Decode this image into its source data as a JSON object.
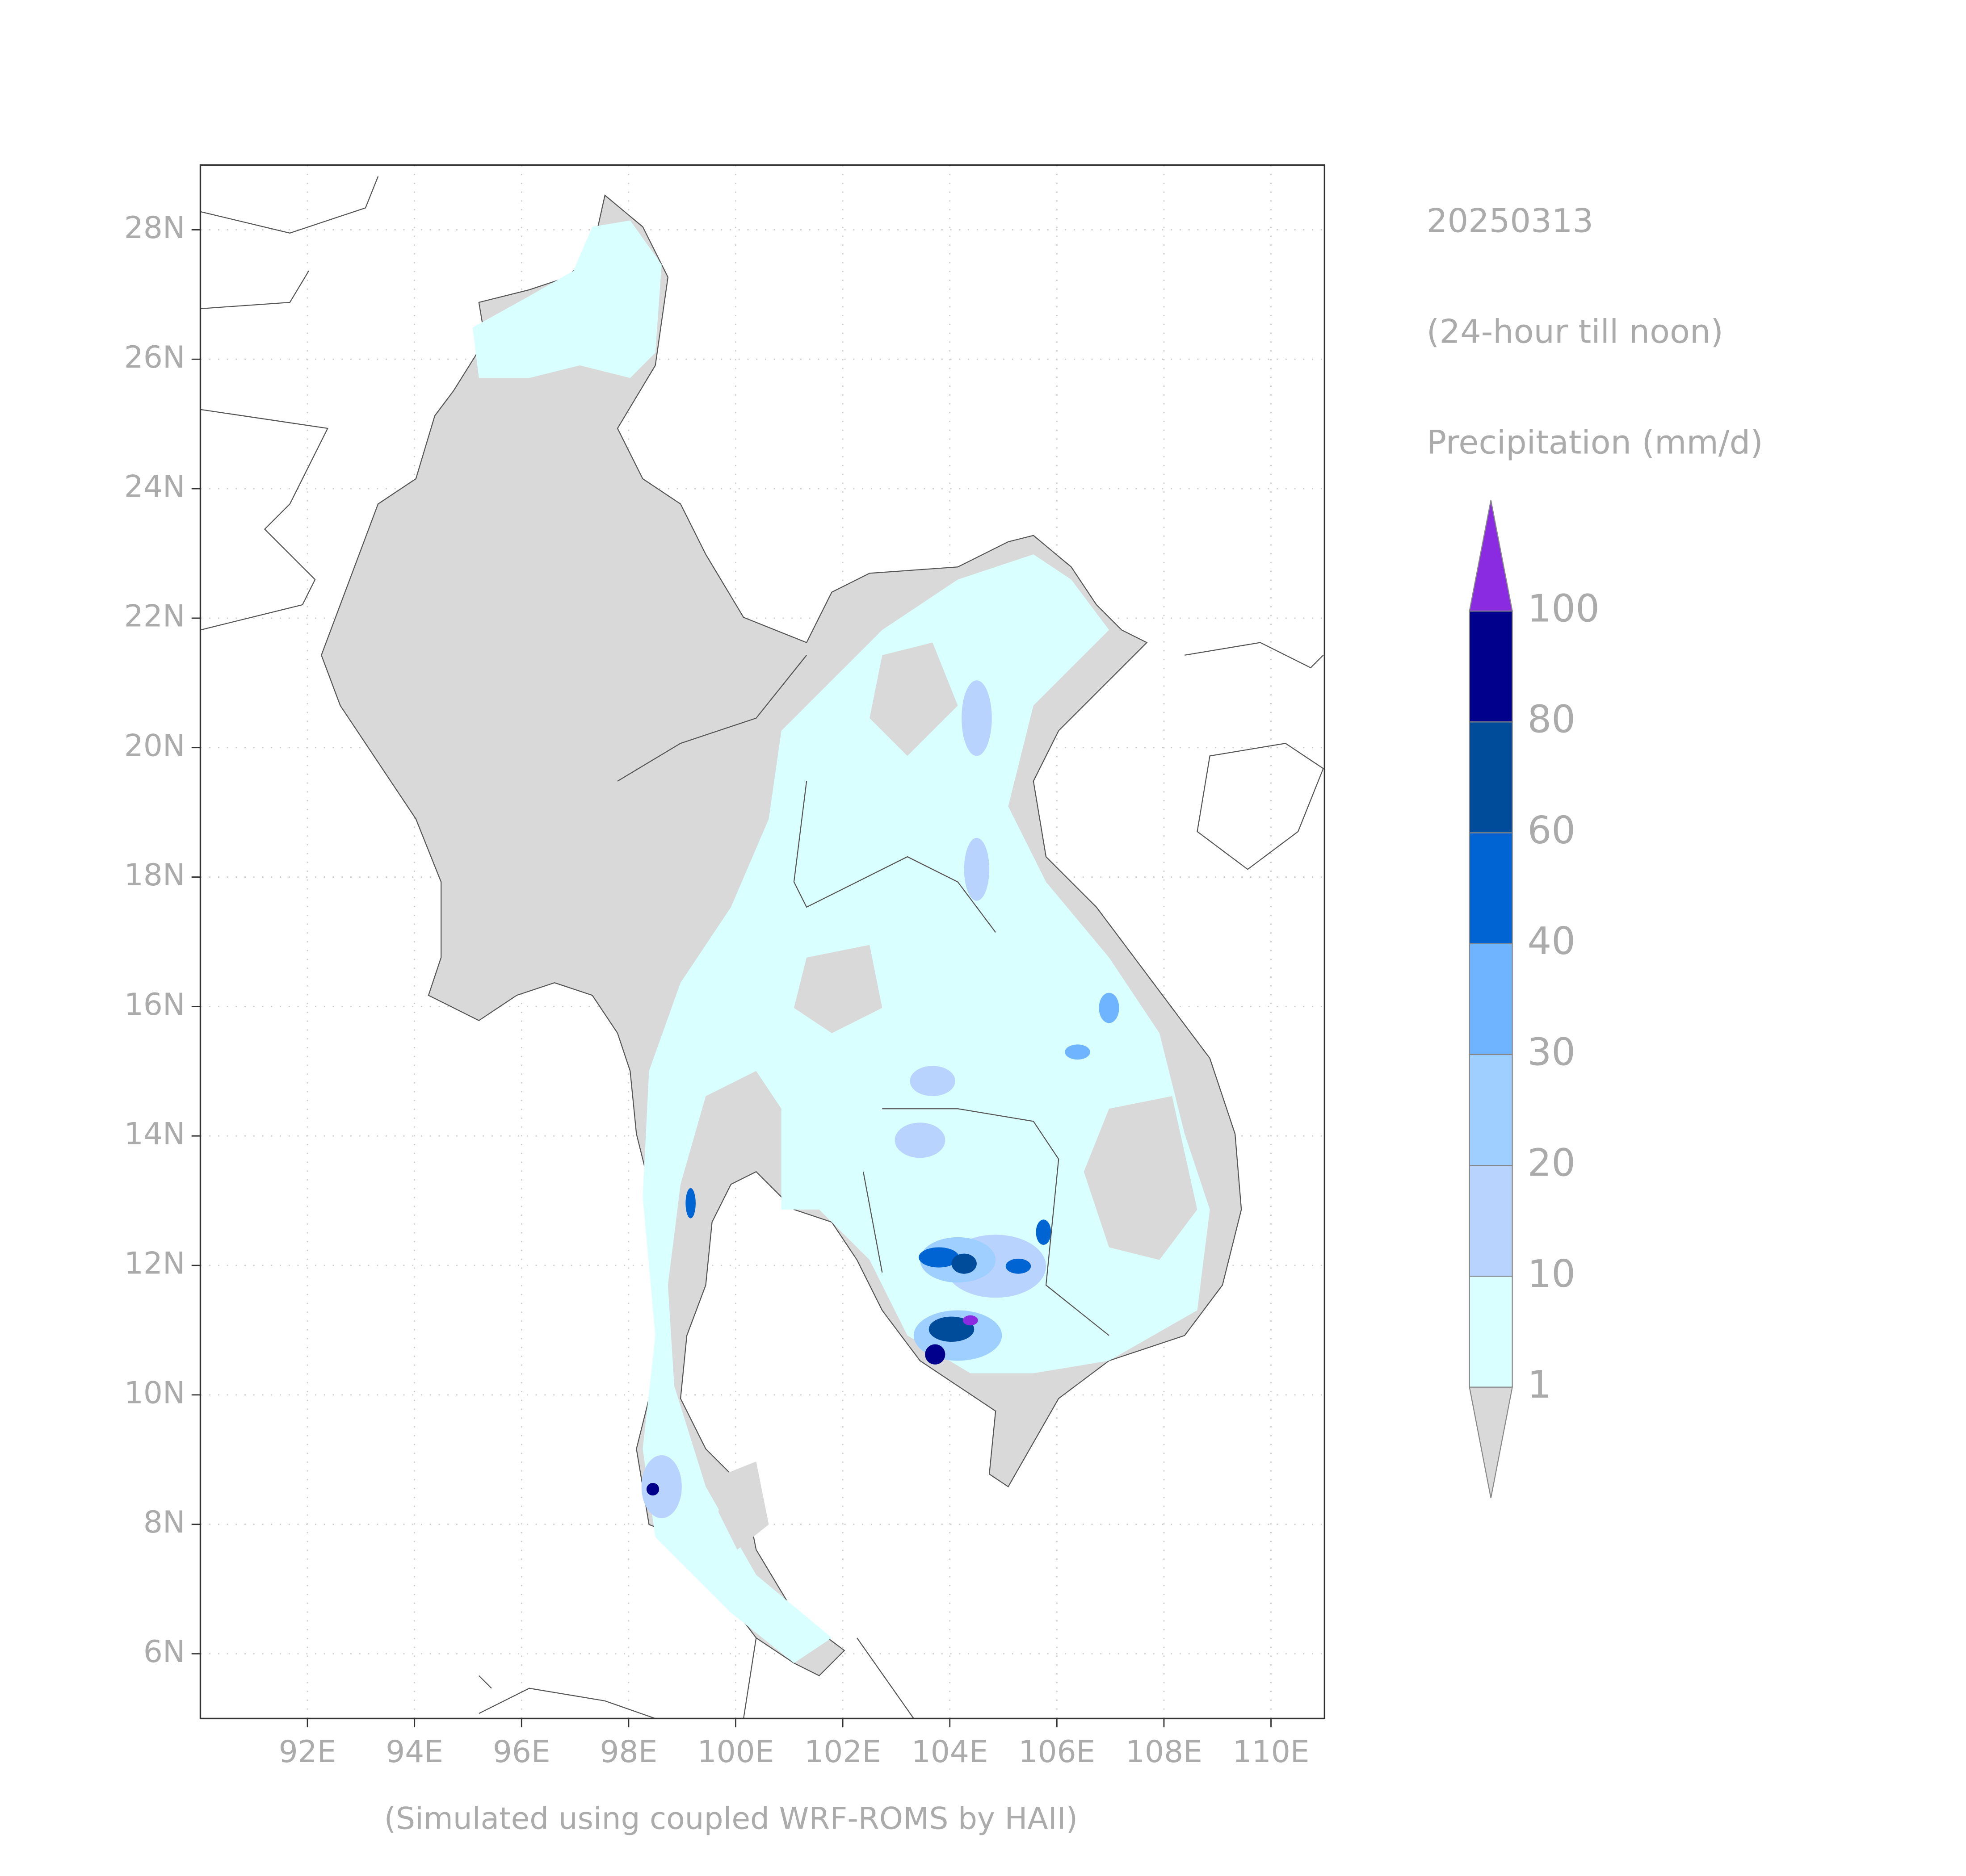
{
  "map": {
    "lon_range": [
      90,
      111
    ],
    "lat_range": [
      5,
      29
    ],
    "lon_ticks": [
      {
        "value": 92,
        "label": "92E"
      },
      {
        "value": 94,
        "label": "94E"
      },
      {
        "value": 96,
        "label": "96E"
      },
      {
        "value": 98,
        "label": "98E"
      },
      {
        "value": 100,
        "label": "100E"
      },
      {
        "value": 102,
        "label": "102E"
      },
      {
        "value": 104,
        "label": "104E"
      },
      {
        "value": 106,
        "label": "106E"
      },
      {
        "value": 108,
        "label": "108E"
      },
      {
        "value": 110,
        "label": "110E"
      }
    ],
    "lat_ticks": [
      {
        "value": 6,
        "label": "6N"
      },
      {
        "value": 8,
        "label": "8N"
      },
      {
        "value": 10,
        "label": "10N"
      },
      {
        "value": 12,
        "label": "12N"
      },
      {
        "value": 14,
        "label": "14N"
      },
      {
        "value": 16,
        "label": "16N"
      },
      {
        "value": 18,
        "label": "18N"
      },
      {
        "value": 20,
        "label": "20N"
      },
      {
        "value": 22,
        "label": "22N"
      },
      {
        "value": 24,
        "label": "24N"
      },
      {
        "value": 26,
        "label": "26N"
      },
      {
        "value": 28,
        "label": "28N"
      }
    ]
  },
  "legend": {
    "date": "20250313",
    "period": "(24-hour till noon)",
    "variable": "Precipitation (mm/d)",
    "levels": [
      1,
      10,
      20,
      30,
      40,
      60,
      80,
      100
    ],
    "colors": [
      "#d9d9d9",
      "#d9ffff",
      "#b9d3ff",
      "#9fcfff",
      "#6eb4ff",
      "#0064d2",
      "#004c9a",
      "#00008c",
      "#8a2be2"
    ]
  },
  "footer": "(Simulated using coupled WRF-ROMS by HAII)"
}
